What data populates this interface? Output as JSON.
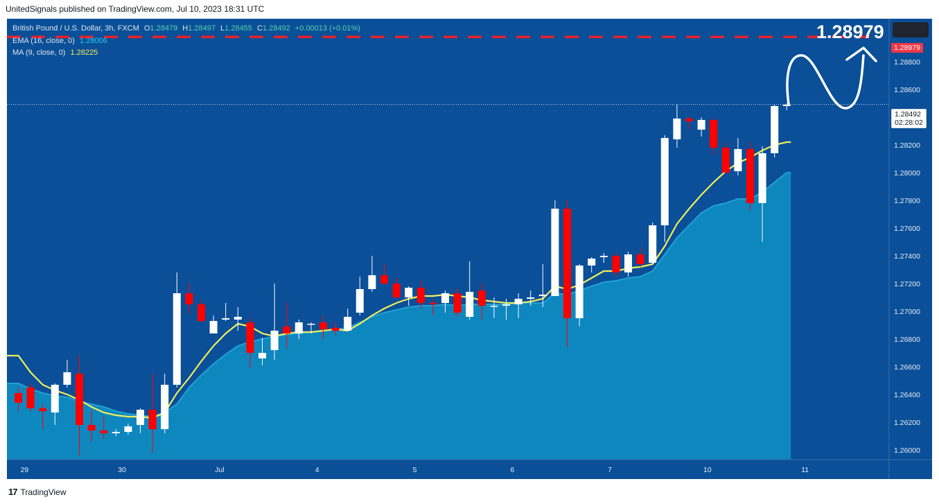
{
  "header": {
    "published_text": "UnitedSignals published on TradingView.com, Jul 10, 2023 18:31 UTC"
  },
  "legend": {
    "symbol": "British Pound / U.S. Dollar, 3h, FXCM",
    "o_label": "O",
    "o": "1.28479",
    "h_label": "H",
    "h": "1.28497",
    "l_label": "L",
    "l": "1.28455",
    "c_label": "C",
    "c": "1.28492",
    "change": "+0.00013 (+0.01%)",
    "ema_label": "EMA (16, close, 0)",
    "ema_value": "1.28006",
    "ma_label": "MA (9, close, 0)",
    "ma_value": "1.28225"
  },
  "annotations": {
    "target_price": "1.28979",
    "target_tag": "1.28979",
    "last_price": "1.28492",
    "countdown": "02:28:02"
  },
  "footer": {
    "brand": "TradingView"
  },
  "colors": {
    "background": "#0a4f98",
    "up_candle": "#ffffff",
    "down_candle": "#ff0000",
    "ma_line": "#f3ef5a",
    "ema_area": "#0e86be",
    "target_line": "#e8202a"
  },
  "chart_data": {
    "type": "candlestick",
    "title": "British Pound / U.S. Dollar, 3h, FXCM",
    "ylim": [
      1.2593,
      1.2924
    ],
    "y_ticks": [
      1.26,
      1.262,
      1.264,
      1.266,
      1.268,
      1.27,
      1.272,
      1.274,
      1.276,
      1.278,
      1.28,
      1.282,
      1.286,
      1.288
    ],
    "y_tick_labels": [
      "1.26000",
      "1.26200",
      "1.26400",
      "1.26600",
      "1.26800",
      "1.27000",
      "1.27200",
      "1.27400",
      "1.27600",
      "1.27800",
      "1.28000",
      "1.28200",
      "1.28600",
      "1.28800"
    ],
    "x_ticks": [
      {
        "index": 0.5,
        "label": "29"
      },
      {
        "index": 8.5,
        "label": "30"
      },
      {
        "index": 16.5,
        "label": "Jul"
      },
      {
        "index": 24.5,
        "label": "4"
      },
      {
        "index": 32.5,
        "label": "5"
      },
      {
        "index": 40.5,
        "label": "6"
      },
      {
        "index": 48.5,
        "label": "7"
      },
      {
        "index": 56.5,
        "label": "10"
      },
      {
        "index": 64.5,
        "label": "11"
      }
    ],
    "candles": [
      {
        "o": 1.2641,
        "h": 1.2645,
        "l": 1.2628,
        "c": 1.2634
      },
      {
        "o": 1.2645,
        "h": 1.2648,
        "l": 1.2628,
        "c": 1.263
      },
      {
        "o": 1.263,
        "h": 1.2633,
        "l": 1.2615,
        "c": 1.2628
      },
      {
        "o": 1.2627,
        "h": 1.2648,
        "l": 1.2618,
        "c": 1.2647
      },
      {
        "o": 1.2647,
        "h": 1.2665,
        "l": 1.2645,
        "c": 1.2656
      },
      {
        "o": 1.2655,
        "h": 1.2668,
        "l": 1.2596,
        "c": 1.2618
      },
      {
        "o": 1.2618,
        "h": 1.2628,
        "l": 1.2606,
        "c": 1.2614
      },
      {
        "o": 1.2614,
        "h": 1.2624,
        "l": 1.2608,
        "c": 1.2612
      },
      {
        "o": 1.2612,
        "h": 1.2615,
        "l": 1.261,
        "c": 1.2613
      },
      {
        "o": 1.2613,
        "h": 1.2619,
        "l": 1.2611,
        "c": 1.2617
      },
      {
        "o": 1.2618,
        "h": 1.263,
        "l": 1.2612,
        "c": 1.2629
      },
      {
        "o": 1.2629,
        "h": 1.2655,
        "l": 1.2598,
        "c": 1.2615
      },
      {
        "o": 1.2615,
        "h": 1.2655,
        "l": 1.2612,
        "c": 1.2647
      },
      {
        "o": 1.2647,
        "h": 1.2728,
        "l": 1.2645,
        "c": 1.2713
      },
      {
        "o": 1.2713,
        "h": 1.272,
        "l": 1.2698,
        "c": 1.2705
      },
      {
        "o": 1.2705,
        "h": 1.2708,
        "l": 1.2692,
        "c": 1.2693
      },
      {
        "o": 1.2684,
        "h": 1.2697,
        "l": 1.2684,
        "c": 1.2693
      },
      {
        "o": 1.2694,
        "h": 1.2706,
        "l": 1.2693,
        "c": 1.2695
      },
      {
        "o": 1.2694,
        "h": 1.2703,
        "l": 1.2686,
        "c": 1.2696
      },
      {
        "o": 1.2692,
        "h": 1.2695,
        "l": 1.2659,
        "c": 1.267
      },
      {
        "o": 1.2666,
        "h": 1.2681,
        "l": 1.2661,
        "c": 1.267
      },
      {
        "o": 1.2672,
        "h": 1.272,
        "l": 1.2665,
        "c": 1.2686
      },
      {
        "o": 1.2689,
        "h": 1.2706,
        "l": 1.2673,
        "c": 1.2684
      },
      {
        "o": 1.2684,
        "h": 1.2694,
        "l": 1.268,
        "c": 1.2692
      },
      {
        "o": 1.2691,
        "h": 1.2692,
        "l": 1.2684,
        "c": 1.2691
      },
      {
        "o": 1.2692,
        "h": 1.2697,
        "l": 1.268,
        "c": 1.2687
      },
      {
        "o": 1.2688,
        "h": 1.2692,
        "l": 1.2683,
        "c": 1.2686
      },
      {
        "o": 1.2686,
        "h": 1.2702,
        "l": 1.2686,
        "c": 1.2696
      },
      {
        "o": 1.2699,
        "h": 1.2725,
        "l": 1.2697,
        "c": 1.2716
      },
      {
        "o": 1.2716,
        "h": 1.274,
        "l": 1.2714,
        "c": 1.2726
      },
      {
        "o": 1.2726,
        "h": 1.2734,
        "l": 1.2719,
        "c": 1.272
      },
      {
        "o": 1.272,
        "h": 1.2724,
        "l": 1.2709,
        "c": 1.271
      },
      {
        "o": 1.271,
        "h": 1.2718,
        "l": 1.2704,
        "c": 1.2717
      },
      {
        "o": 1.2717,
        "h": 1.2722,
        "l": 1.2702,
        "c": 1.2706
      },
      {
        "o": 1.2706,
        "h": 1.2709,
        "l": 1.2697,
        "c": 1.2705
      },
      {
        "o": 1.2706,
        "h": 1.2715,
        "l": 1.2699,
        "c": 1.2713
      },
      {
        "o": 1.2713,
        "h": 1.2717,
        "l": 1.2696,
        "c": 1.2699
      },
      {
        "o": 1.2696,
        "h": 1.2736,
        "l": 1.2694,
        "c": 1.2714
      },
      {
        "o": 1.2715,
        "h": 1.272,
        "l": 1.2694,
        "c": 1.2704
      },
      {
        "o": 1.2704,
        "h": 1.271,
        "l": 1.2695,
        "c": 1.2704
      },
      {
        "o": 1.2704,
        "h": 1.2709,
        "l": 1.2694,
        "c": 1.2705
      },
      {
        "o": 1.2705,
        "h": 1.2713,
        "l": 1.2695,
        "c": 1.2709
      },
      {
        "o": 1.2709,
        "h": 1.2715,
        "l": 1.2704,
        "c": 1.271
      },
      {
        "o": 1.2711,
        "h": 1.2734,
        "l": 1.2703,
        "c": 1.2712
      },
      {
        "o": 1.2711,
        "h": 1.278,
        "l": 1.2711,
        "c": 1.2774
      },
      {
        "o": 1.2774,
        "h": 1.278,
        "l": 1.2674,
        "c": 1.2695
      },
      {
        "o": 1.2695,
        "h": 1.2734,
        "l": 1.2689,
        "c": 1.2733
      },
      {
        "o": 1.2733,
        "h": 1.2739,
        "l": 1.2728,
        "c": 1.2738
      },
      {
        "o": 1.2739,
        "h": 1.2742,
        "l": 1.2735,
        "c": 1.274
      },
      {
        "o": 1.274,
        "h": 1.2742,
        "l": 1.2725,
        "c": 1.2728
      },
      {
        "o": 1.2728,
        "h": 1.2743,
        "l": 1.2725,
        "c": 1.2741
      },
      {
        "o": 1.2741,
        "h": 1.2746,
        "l": 1.2732,
        "c": 1.2734
      },
      {
        "o": 1.2735,
        "h": 1.2764,
        "l": 1.2734,
        "c": 1.2762
      },
      {
        "o": 1.2762,
        "h": 1.2827,
        "l": 1.275,
        "c": 1.2825
      },
      {
        "o": 1.2824,
        "h": 1.2849,
        "l": 1.2818,
        "c": 1.2839
      },
      {
        "o": 1.2839,
        "h": 1.2841,
        "l": 1.2831,
        "c": 1.2837
      },
      {
        "o": 1.2831,
        "h": 1.284,
        "l": 1.2826,
        "c": 1.2838
      },
      {
        "o": 1.2838,
        "h": 1.2839,
        "l": 1.2813,
        "c": 1.2818
      },
      {
        "o": 1.2818,
        "h": 1.2822,
        "l": 1.28,
        "c": 1.28
      },
      {
        "o": 1.2801,
        "h": 1.2825,
        "l": 1.2798,
        "c": 1.2817
      },
      {
        "o": 1.2817,
        "h": 1.2822,
        "l": 1.2773,
        "c": 1.2778
      },
      {
        "o": 1.2778,
        "h": 1.2819,
        "l": 1.275,
        "c": 1.2814
      },
      {
        "o": 1.2814,
        "h": 1.2849,
        "l": 1.2811,
        "c": 1.2848
      },
      {
        "o": 1.2848,
        "h": 1.285,
        "l": 1.2845,
        "c": 1.2849
      }
    ],
    "series": [
      {
        "name": "EMA (16, close, 0)",
        "values": [
          1.2648,
          1.2644,
          1.2641,
          1.2639,
          1.2638,
          1.2635,
          1.2633,
          1.2631,
          1.2628,
          1.2626,
          1.2625,
          1.2624,
          1.2627,
          1.2633,
          1.2645,
          1.2654,
          1.2662,
          1.2669,
          1.2675,
          1.2678,
          1.268,
          1.2682,
          1.2683,
          1.2684,
          1.2685,
          1.2686,
          1.2687,
          1.2688,
          1.2692,
          1.2696,
          1.2699,
          1.2701,
          1.2703,
          1.2704,
          1.2704,
          1.2705,
          1.2704,
          1.2705,
          1.2705,
          1.2705,
          1.2705,
          1.2706,
          1.2706,
          1.2706,
          1.2713,
          1.2712,
          1.2715,
          1.2718,
          1.2721,
          1.2722,
          1.2724,
          1.2725,
          1.2729,
          1.2741,
          1.2753,
          1.2762,
          1.2771,
          1.2776,
          1.2778,
          1.2781,
          1.2781,
          1.2786,
          1.2793,
          1.28
        ]
      },
      {
        "name": "MA (9, close, 0)",
        "values": [
          1.2668,
          1.2656,
          1.2647,
          1.2643,
          1.264,
          1.2636,
          1.2631,
          1.2627,
          1.2625,
          1.2624,
          1.2624,
          1.2623,
          1.2627,
          1.2641,
          1.2652,
          1.2664,
          1.2675,
          1.2684,
          1.2691,
          1.2689,
          1.2684,
          1.2682,
          1.2684,
          1.2685,
          1.2685,
          1.2686,
          1.2687,
          1.2686,
          1.2691,
          1.2697,
          1.2702,
          1.2706,
          1.2709,
          1.2711,
          1.2711,
          1.2712,
          1.2711,
          1.271,
          1.2708,
          1.2707,
          1.2706,
          1.2706,
          1.2707,
          1.2709,
          1.2718,
          1.2716,
          1.2719,
          1.2724,
          1.2729,
          1.2729,
          1.2731,
          1.2732,
          1.2734,
          1.2747,
          1.2763,
          1.2774,
          1.2784,
          1.2793,
          1.2801,
          1.2807,
          1.2811,
          1.2816,
          1.282,
          1.2822
        ]
      }
    ],
    "target_level": 1.28979,
    "last_price": 1.28492
  }
}
